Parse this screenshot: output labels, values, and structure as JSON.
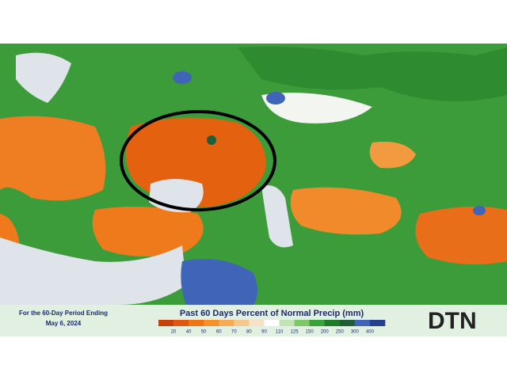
{
  "caption": {
    "line1": "For the 60-Day Period Ending",
    "line2": "May 6, 2024"
  },
  "legend": {
    "title": "Past 60 Days Percent of Normal Precip (mm)",
    "ticks": [
      20,
      40,
      50,
      60,
      70,
      80,
      90,
      110,
      125,
      150,
      200,
      250,
      300,
      400
    ],
    "colors": [
      "#c8400a",
      "#e0580f",
      "#ef7414",
      "#f5902a",
      "#f7ab55",
      "#f5c98e",
      "#f6e2c4",
      "#ffffff",
      "#bfe6b2",
      "#7cc86a",
      "#3aa33a",
      "#1f7d2a",
      "#1e5e3a",
      "#3f64b8",
      "#27408b"
    ]
  },
  "logo": "DTN"
}
